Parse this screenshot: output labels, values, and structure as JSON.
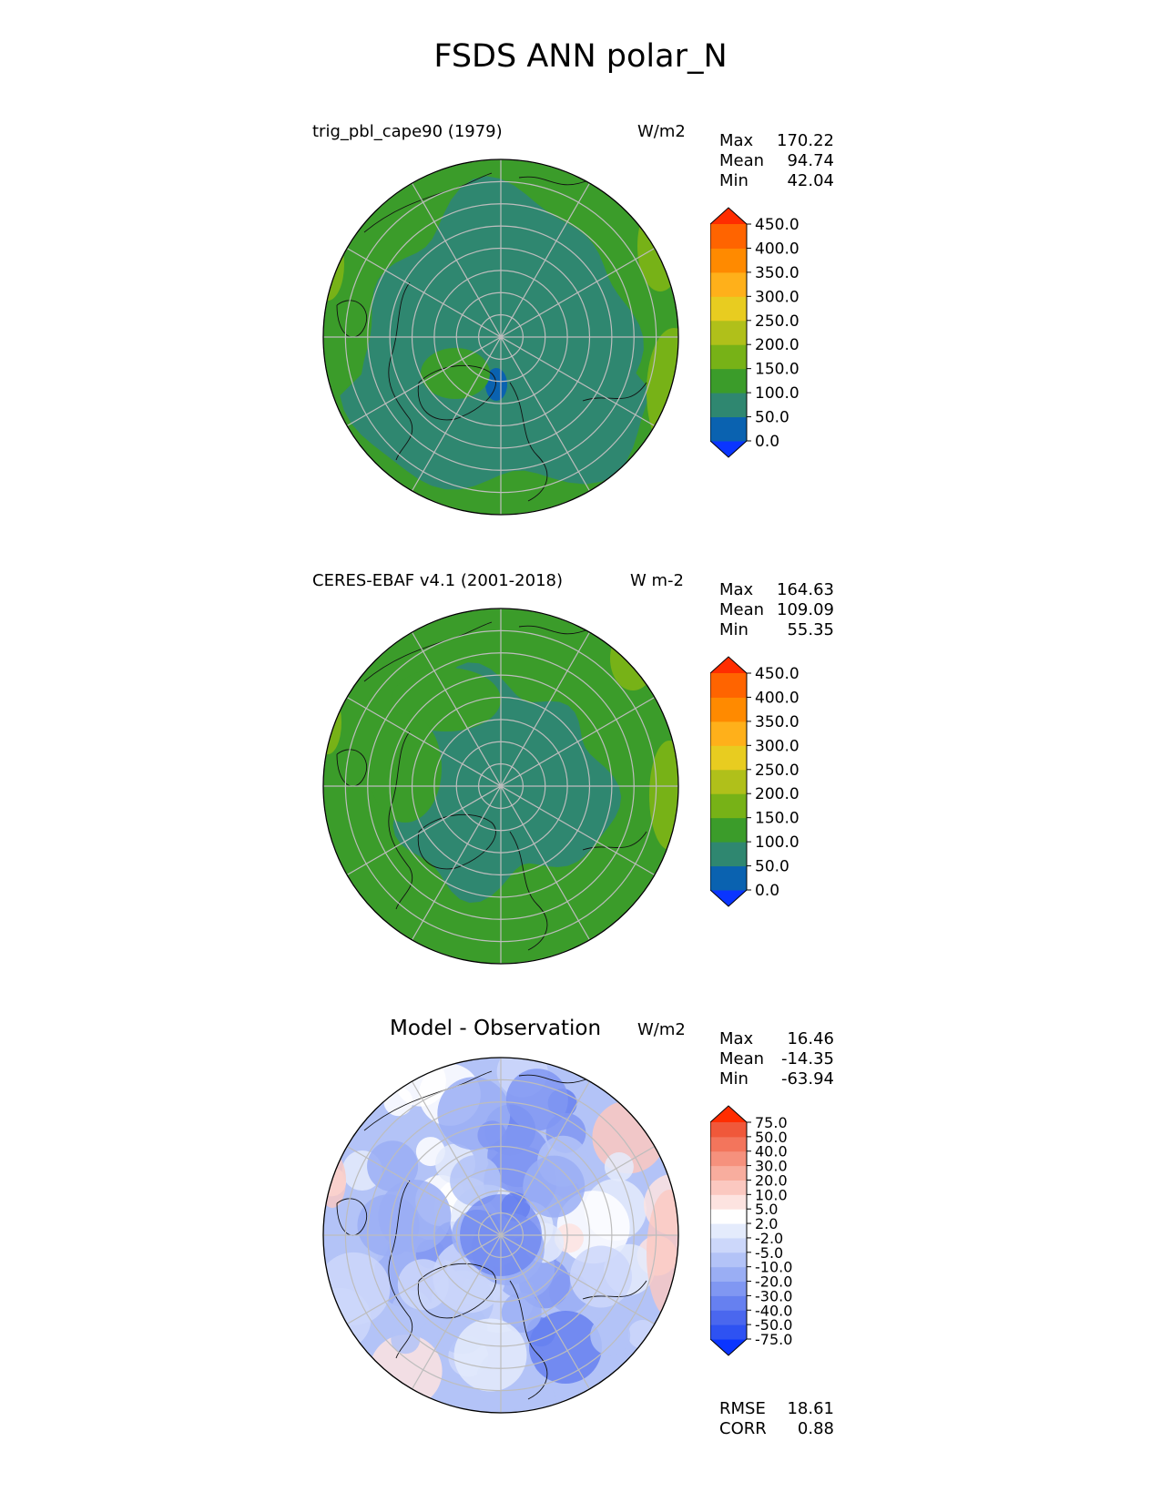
{
  "figure_title": "FSDS ANN polar_N",
  "chart_data": [
    {
      "type": "heatmap",
      "projection": "north polar stereographic",
      "title": "trig_pbl_cape90 (1979)",
      "units": "W/m2",
      "stats": [
        {
          "label": "Max",
          "value": "170.22"
        },
        {
          "label": "Mean",
          "value": "94.74"
        },
        {
          "label": "Min",
          "value": "42.04"
        }
      ],
      "colorbar": {
        "levels": [
          "0.0",
          "50.0",
          "100.0",
          "150.0",
          "200.0",
          "250.0",
          "300.0",
          "350.0",
          "400.0",
          "450.0"
        ],
        "colors": [
          "#0a35ff",
          "#0a62b0",
          "#2f8770",
          "#3b9c2a",
          "#77b217",
          "#b0c01a",
          "#e8cc20",
          "#ffb01a",
          "#ff8a00",
          "#ff6400",
          "#ff2d00"
        ],
        "extend": "both"
      }
    },
    {
      "type": "heatmap",
      "projection": "north polar stereographic",
      "title": "CERES-EBAF v4.1 (2001-2018)",
      "units": "W m-2",
      "stats": [
        {
          "label": "Max",
          "value": "164.63"
        },
        {
          "label": "Mean",
          "value": "109.09"
        },
        {
          "label": "Min",
          "value": "55.35"
        }
      ],
      "colorbar": {
        "levels": [
          "0.0",
          "50.0",
          "100.0",
          "150.0",
          "200.0",
          "250.0",
          "300.0",
          "350.0",
          "400.0",
          "450.0"
        ],
        "colors": [
          "#0a35ff",
          "#0a62b0",
          "#2f8770",
          "#3b9c2a",
          "#77b217",
          "#b0c01a",
          "#e8cc20",
          "#ffb01a",
          "#ff8a00",
          "#ff6400",
          "#ff2d00"
        ],
        "extend": "both"
      }
    },
    {
      "type": "heatmap",
      "projection": "north polar stereographic",
      "title": "Model - Observation",
      "units": "W/m2",
      "stats": [
        {
          "label": "Max",
          "value": "16.46"
        },
        {
          "label": "Mean",
          "value": "-14.35"
        },
        {
          "label": "Min",
          "value": "-63.94"
        }
      ],
      "extra_stats": [
        {
          "label": "RMSE",
          "value": "18.61"
        },
        {
          "label": "CORR",
          "value": "0.88"
        }
      ],
      "colorbar": {
        "levels": [
          "-75.0",
          "-50.0",
          "-40.0",
          "-30.0",
          "-20.0",
          "-10.0",
          "-5.0",
          "-2.0",
          "2.0",
          "5.0",
          "10.0",
          "20.0",
          "30.0",
          "40.0",
          "50.0",
          "75.0"
        ],
        "colors": [
          "#0a35ff",
          "#2e52f2",
          "#4a67ee",
          "#6680f0",
          "#8097f2",
          "#9aaef4",
          "#b3c3f7",
          "#ccd7fa",
          "#e4ebfc",
          "#ffffff",
          "#fde3e0",
          "#fbc8c0",
          "#f8ad9e",
          "#f6917d",
          "#f3755c",
          "#f0583a",
          "#ff2d00"
        ],
        "extend": "both"
      }
    }
  ]
}
